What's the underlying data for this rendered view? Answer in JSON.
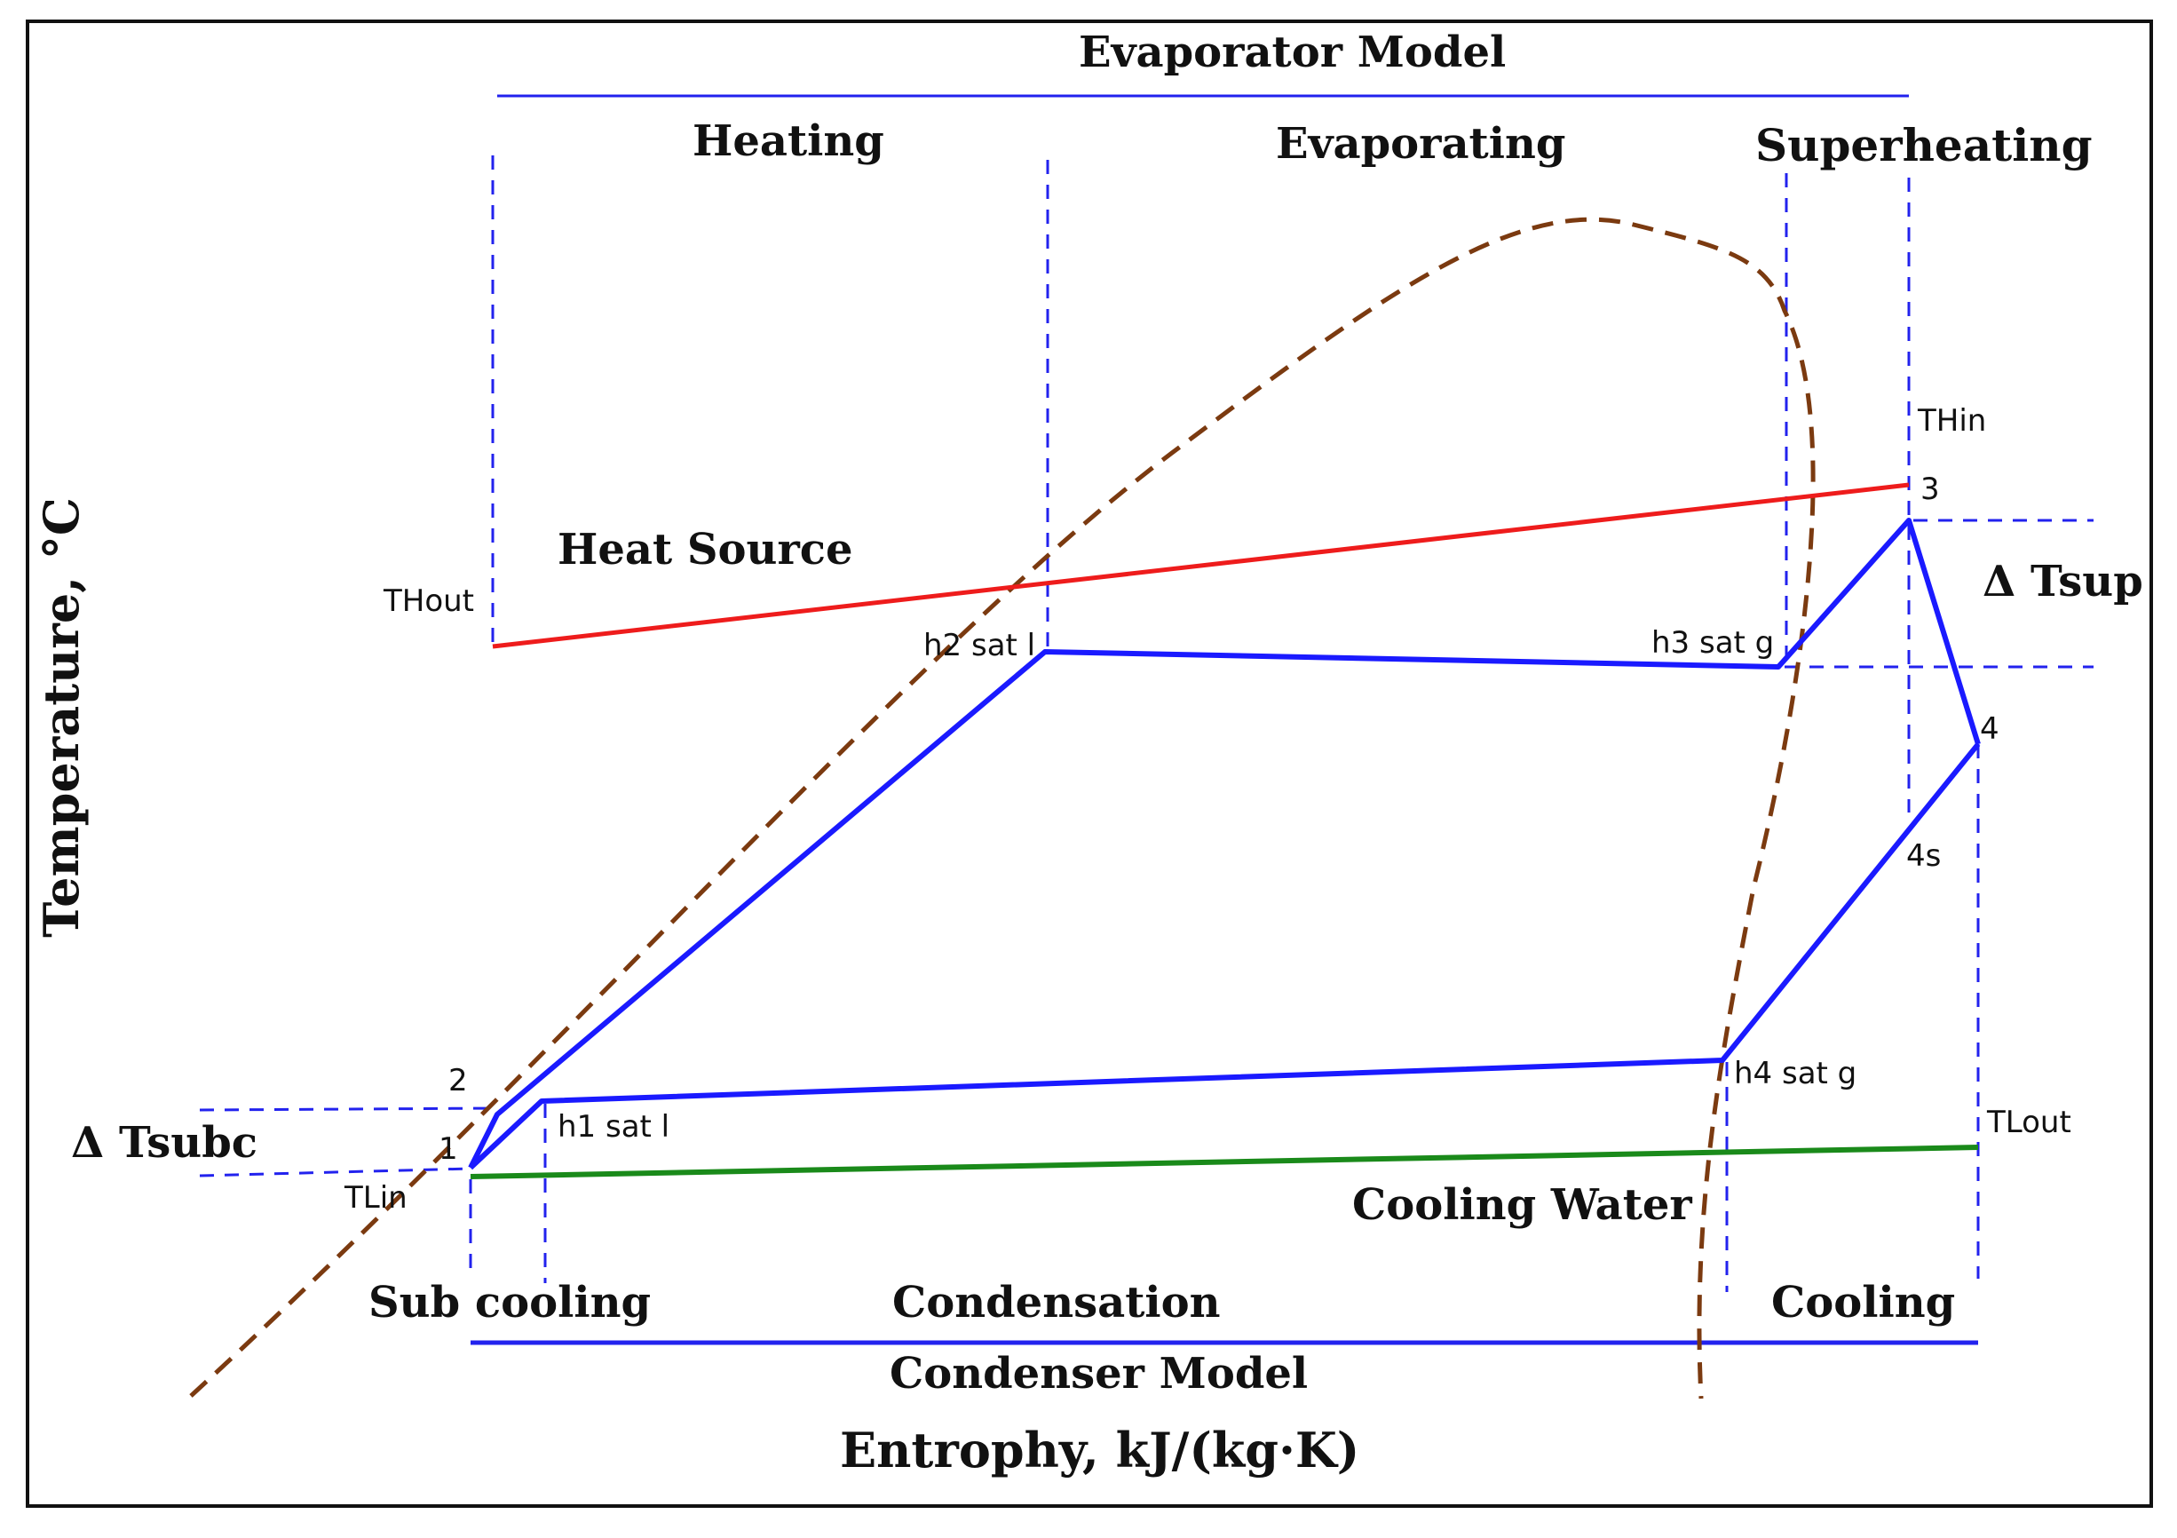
{
  "model_labels": {
    "evaporator": "Evaporator Model",
    "condenser": "Condenser Model"
  },
  "evaporator_zones": {
    "heating": "Heating",
    "evaporating": "Evaporating",
    "superheating": "Superheating"
  },
  "condenser_zones": {
    "subcooling": "Sub cooling",
    "condensation": "Condensation",
    "cooling": "Cooling"
  },
  "streams": {
    "heat_source": "Heat Source",
    "cooling_water": "Cooling Water"
  },
  "axes": {
    "ylabel": "Temperature, °C",
    "xlabel": "Entrophy, kJ/(kg·K)"
  },
  "deltas": {
    "superheat": "Δ Tsup",
    "subcool": "Δ Tsubc"
  },
  "temperatures": {
    "hot_in": "THin",
    "hot_out": "THout",
    "cold_in": "TLin",
    "cold_out": "TLout"
  },
  "state_points": {
    "p1": "1",
    "p2": "2",
    "p3": "3",
    "p4": "4",
    "p4s": "4s",
    "h1": "h1 sat l",
    "h2": "h2 sat l",
    "h3": "h3 sat g",
    "h4": "h4 sat g"
  },
  "colors": {
    "cycle": "#1a1aff",
    "heat_source": "#ee1c1c",
    "cooling_water": "#1a8a1a",
    "saturation_dome": "#7b3a10",
    "guides": "#2222ee"
  }
}
